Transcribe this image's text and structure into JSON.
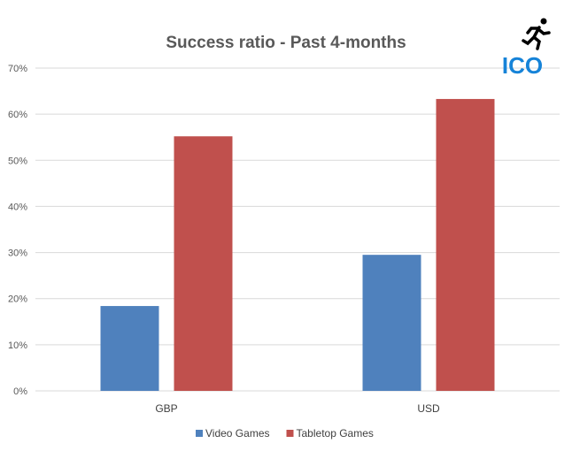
{
  "chart_data": {
    "type": "bar",
    "title": "Success ratio - Past 4-months",
    "categories": [
      "GBP",
      "USD"
    ],
    "series": [
      {
        "name": "Video Games",
        "values": [
          18.4,
          29.5
        ],
        "color": "#4F81BD"
      },
      {
        "name": "Tabletop Games",
        "values": [
          55.2,
          63.3
        ],
        "color": "#C0504D"
      }
    ],
    "ylim": [
      0,
      70
    ],
    "yticks": [
      0,
      10,
      20,
      30,
      40,
      50,
      60,
      70
    ],
    "ytick_format": "%",
    "grid": true,
    "legend_position": "bottom"
  },
  "logo": {
    "text": "ICO",
    "color": "#1683D8",
    "icon": "running-person-icon"
  }
}
